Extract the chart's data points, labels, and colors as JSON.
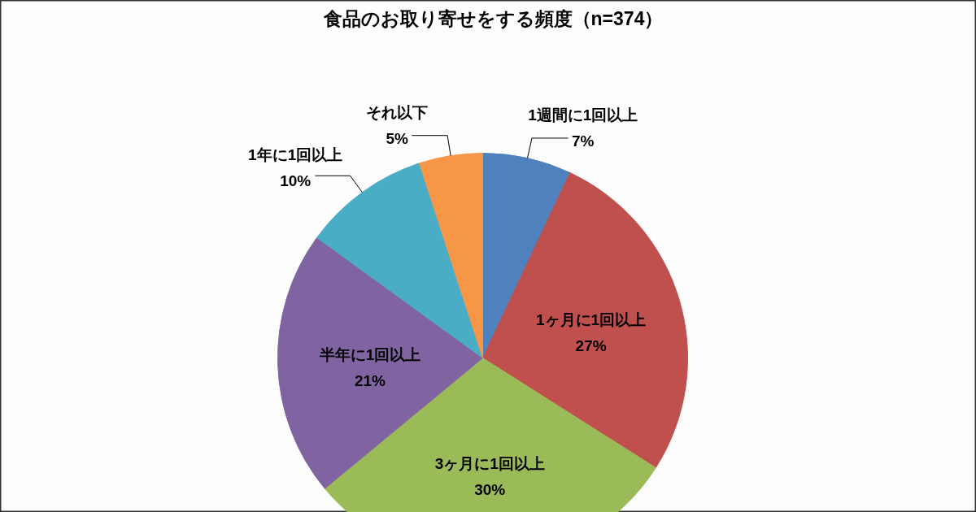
{
  "chart_data": {
    "type": "pie",
    "title": "食品のお取り寄せをする頻度（n=374）",
    "categories": [
      "1週間に1回以上",
      "1ヶ月に1回以上",
      "3ヶ月に1回以上",
      "半年に1回以上",
      "1年に1回以上",
      "それ以下"
    ],
    "values": [
      7,
      27,
      30,
      21,
      10,
      5
    ],
    "value_labels": [
      "7%",
      "27%",
      "30%",
      "21%",
      "10%",
      "5%"
    ],
    "colors": [
      "#4f81bd",
      "#c0504d",
      "#9bbb59",
      "#8064a2",
      "#4bacc6",
      "#f79646"
    ]
  }
}
